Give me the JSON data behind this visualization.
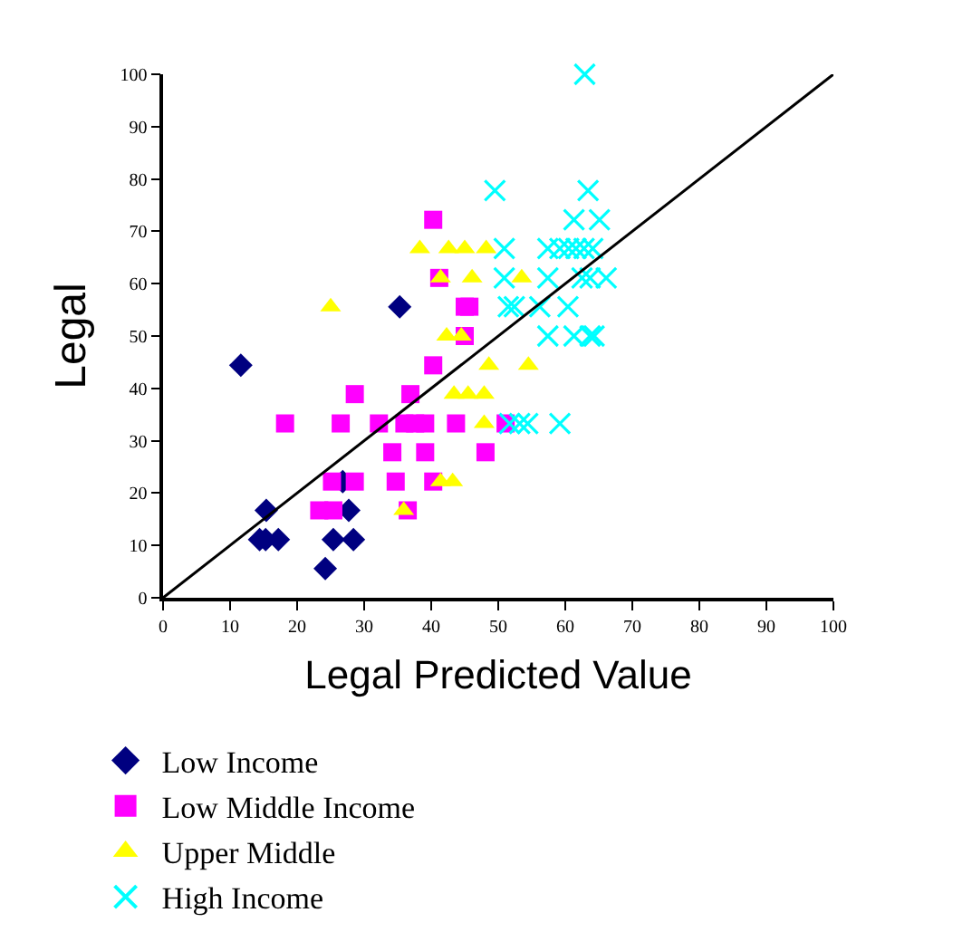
{
  "chart_data": {
    "type": "scatter",
    "xlabel": "Legal Predicted Value",
    "ylabel": "Legal",
    "xlim": [
      0,
      100
    ],
    "ylim": [
      0,
      100
    ],
    "xticks": [
      0,
      10,
      20,
      30,
      40,
      50,
      60,
      70,
      80,
      90,
      100
    ],
    "yticks": [
      0,
      10,
      20,
      30,
      40,
      50,
      60,
      70,
      80,
      90,
      100
    ],
    "legend": "bottom",
    "series": [
      {
        "name": "Low Income",
        "color": "#000080",
        "marker": "diamond",
        "x": [
          11.6,
          35.3,
          15.4,
          14.4,
          15.3,
          17.2,
          24.2,
          25.4,
          28.4,
          27.7,
          26.8
        ],
        "values": [
          44.4,
          55.6,
          16.7,
          11.1,
          11.1,
          11.1,
          5.6,
          11.1,
          11.1,
          16.7,
          22.2
        ]
      },
      {
        "name": "Low Middle Income",
        "color": "#ff00ff",
        "marker": "square",
        "x": [
          40.3,
          41.2,
          45.0,
          45.7,
          45.0,
          40.3,
          28.6,
          36.9,
          18.2,
          26.5,
          32.2,
          36.0,
          37.6,
          39.1,
          43.7,
          51.1,
          34.2,
          39.1,
          48.1,
          25.2,
          28.6,
          34.7,
          40.3,
          23.3,
          25.4,
          36.5
        ],
        "values": [
          72.2,
          61.1,
          55.6,
          55.6,
          50.0,
          44.4,
          38.9,
          38.9,
          33.3,
          33.3,
          33.3,
          33.3,
          33.3,
          33.3,
          33.3,
          33.3,
          27.8,
          27.8,
          27.8,
          22.2,
          22.2,
          22.2,
          22.2,
          16.7,
          16.7,
          16.7
        ]
      },
      {
        "name": "Upper Middle",
        "color": "#ffff00",
        "marker": "triangle",
        "x": [
          25.0,
          38.3,
          42.6,
          45.0,
          48.2,
          41.4,
          46.1,
          53.5,
          42.3,
          44.5,
          48.6,
          54.5,
          43.4,
          45.5,
          47.9,
          47.9,
          41.4,
          43.2,
          35.9
        ],
        "values": [
          55.6,
          66.7,
          66.7,
          66.7,
          66.7,
          61.1,
          61.1,
          61.1,
          50.0,
          50.0,
          44.4,
          44.4,
          38.9,
          38.9,
          38.9,
          33.3,
          22.2,
          22.2,
          16.7
        ]
      },
      {
        "name": "High Income",
        "color": "#00ffff",
        "marker": "cross",
        "x": [
          62.9,
          49.5,
          63.4,
          61.3,
          65.1,
          50.9,
          57.4,
          59.2,
          60.5,
          61.6,
          62.8,
          64.1,
          50.9,
          57.4,
          62.5,
          63.7,
          66.1,
          51.5,
          52.4,
          56.2,
          60.4,
          57.4,
          61.3,
          63.7,
          64.3,
          51.7,
          53.2,
          54.4,
          59.2
        ],
        "values": [
          100,
          77.8,
          77.8,
          72.2,
          72.2,
          66.7,
          66.7,
          66.7,
          66.7,
          66.7,
          66.7,
          66.7,
          61.1,
          61.1,
          61.1,
          61.1,
          61.1,
          55.6,
          55.6,
          55.6,
          55.6,
          50.0,
          50.0,
          50.0,
          50.0,
          33.3,
          33.3,
          33.3,
          33.3
        ]
      },
      {
        "type": "line",
        "color": "#000000",
        "marker": "none",
        "line_style": "solid",
        "x": [
          0,
          100
        ],
        "values": [
          0,
          100
        ]
      }
    ]
  }
}
